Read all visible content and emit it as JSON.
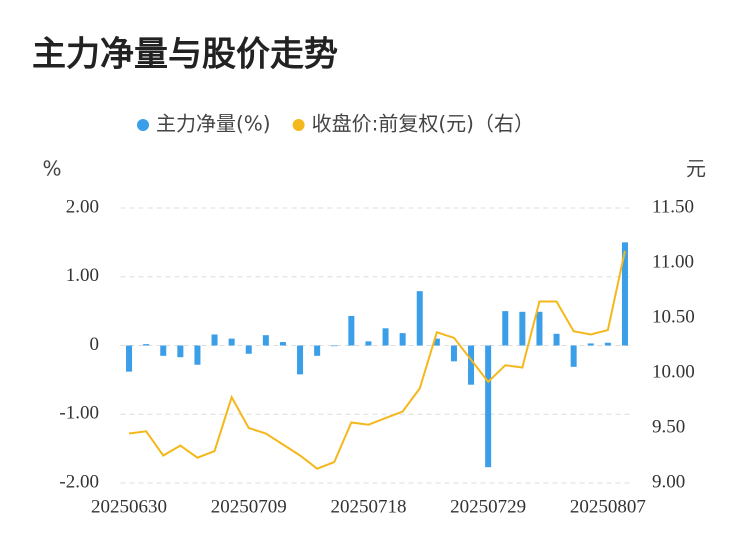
{
  "chart_data": {
    "type": "bar-line",
    "title": "主力净量与股价走势",
    "y_label": "%",
    "y2_label": "元",
    "categories": [
      "20250630",
      null,
      null,
      null,
      null,
      null,
      null,
      "20250709",
      null,
      null,
      null,
      null,
      null,
      null,
      "20250718",
      null,
      null,
      null,
      null,
      null,
      null,
      "20250729",
      null,
      null,
      null,
      null,
      null,
      null,
      "20250807",
      null
    ],
    "series": [
      {
        "name": "主力净量(%)",
        "type": "bar",
        "color": "#3a9ee8",
        "values": [
          -0.38,
          0.02,
          -0.15,
          -0.17,
          -0.28,
          0.16,
          0.1,
          -0.12,
          0.15,
          0.05,
          -0.42,
          -0.15,
          -0.01,
          0.43,
          0.06,
          0.25,
          0.18,
          0.79,
          0.1,
          -0.23,
          -0.57,
          -1.77,
          0.5,
          0.49,
          0.49,
          0.17,
          -0.31,
          0.03,
          0.04,
          1.5
        ]
      },
      {
        "name": "收盘价:前复权(元)（右）",
        "type": "line",
        "axis": "y2",
        "color": "#f5b81c",
        "values": [
          9.45,
          9.47,
          9.25,
          9.34,
          9.23,
          9.29,
          9.78,
          9.5,
          9.45,
          9.35,
          9.25,
          9.13,
          9.19,
          9.55,
          9.53,
          9.59,
          9.65,
          9.86,
          10.37,
          10.32,
          10.12,
          9.92,
          10.07,
          10.05,
          10.65,
          10.65,
          10.38,
          10.35,
          10.39,
          11.11
        ]
      }
    ],
    "ylim": [
      -2,
      2
    ],
    "yticks": [
      {
        "value": 2,
        "label": "2.00"
      },
      {
        "value": 1,
        "label": "1.00"
      },
      0,
      {
        "value": -1,
        "label": "-1.00"
      },
      {
        "value": -2,
        "label": "-2.00"
      }
    ],
    "y2lim": [
      9,
      11.5
    ],
    "y2ticks": [
      {
        "value": 11.5,
        "label": "11.50"
      },
      {
        "value": 11,
        "label": "11.00"
      },
      {
        "value": 10.5,
        "label": "10.50"
      },
      {
        "value": 10,
        "label": "10.00"
      },
      {
        "value": 9.5,
        "label": "9.50"
      },
      {
        "value": 9,
        "label": "9.00"
      }
    ],
    "grid": true,
    "legend": "top"
  }
}
